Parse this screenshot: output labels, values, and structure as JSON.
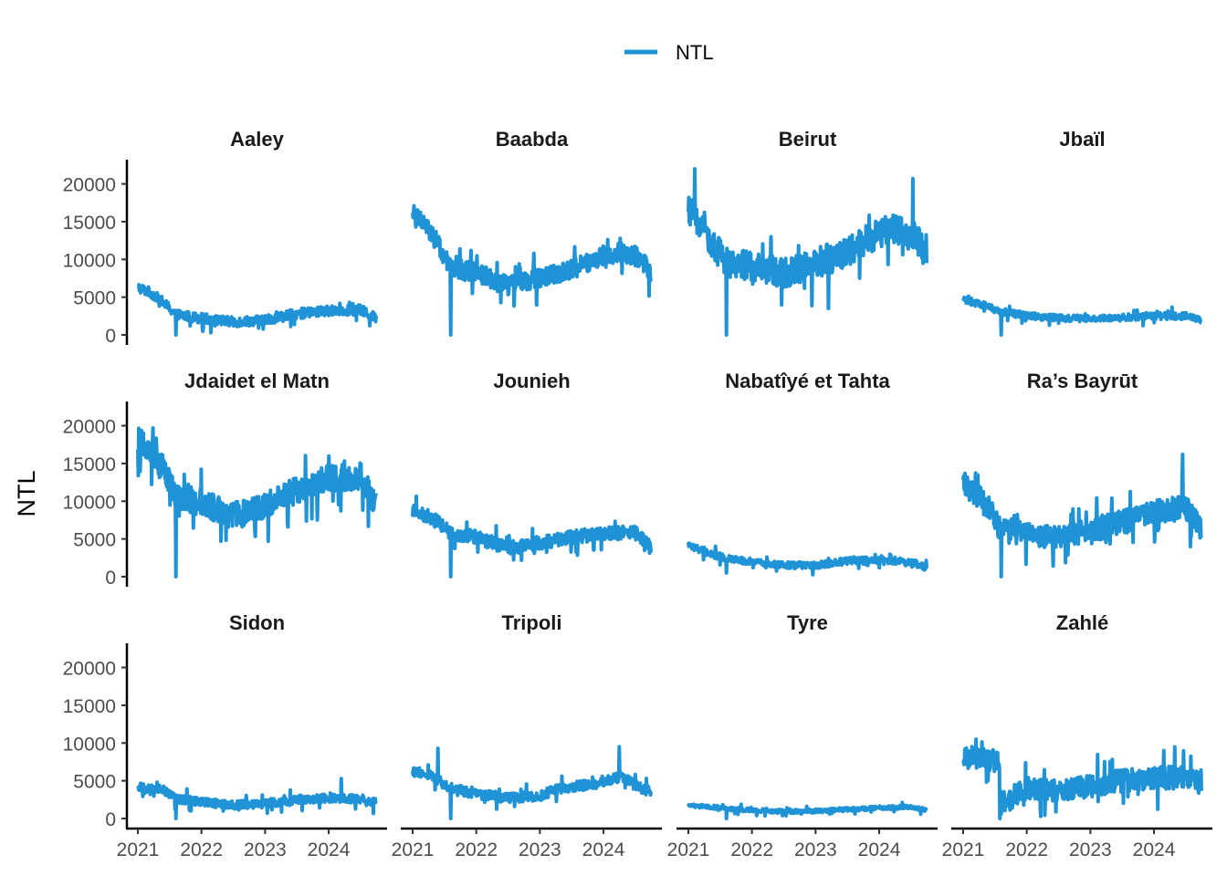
{
  "chart_data": {
    "type": "line",
    "ylabel": "NTL",
    "xlabel": "",
    "legend": {
      "position": "top",
      "entries": [
        {
          "label": "NTL",
          "color": "#1F93D6"
        }
      ]
    },
    "x_ticks": [
      "2021",
      "2022",
      "2023",
      "2024"
    ],
    "y_ticks": [
      "0",
      "5000",
      "10000",
      "15000",
      "20000"
    ],
    "ylim": [
      0,
      22000
    ],
    "xlim": [
      "2021-01-01",
      "2024-09-30"
    ],
    "line_color": "#1F93D6",
    "grid": false,
    "series": [
      {
        "name": "Aaley",
        "trend": [
          [
            2021.0,
            6300
          ],
          [
            2021.2,
            5600
          ],
          [
            2021.4,
            4300
          ],
          [
            2021.6,
            2700
          ],
          [
            2022.0,
            2200
          ],
          [
            2022.5,
            1700
          ],
          [
            2023.0,
            2000
          ],
          [
            2023.5,
            2800
          ],
          [
            2024.0,
            3200
          ],
          [
            2024.5,
            3300
          ],
          [
            2024.75,
            2200
          ]
        ],
        "noise": 650,
        "spikes": [
          [
            2021.6,
            0
          ]
        ]
      },
      {
        "name": "Baabda",
        "trend": [
          [
            2021.0,
            16000
          ],
          [
            2021.2,
            14800
          ],
          [
            2021.4,
            12000
          ],
          [
            2021.6,
            8800
          ],
          [
            2022.0,
            8300
          ],
          [
            2022.5,
            6500
          ],
          [
            2023.0,
            7400
          ],
          [
            2023.5,
            8700
          ],
          [
            2024.0,
            10500
          ],
          [
            2024.3,
            11000
          ],
          [
            2024.6,
            10200
          ],
          [
            2024.75,
            7500
          ]
        ],
        "noise": 1300,
        "spikes": [
          [
            2021.6,
            0
          ]
        ]
      },
      {
        "name": "Beirut",
        "trend": [
          [
            2021.0,
            16500
          ],
          [
            2021.15,
            15000
          ],
          [
            2021.4,
            12000
          ],
          [
            2021.6,
            9500
          ],
          [
            2022.0,
            9200
          ],
          [
            2022.5,
            8200
          ],
          [
            2023.0,
            9500
          ],
          [
            2023.5,
            11000
          ],
          [
            2024.0,
            13500
          ],
          [
            2024.3,
            14000
          ],
          [
            2024.6,
            12800
          ],
          [
            2024.75,
            9500
          ]
        ],
        "noise": 2000,
        "spikes": [
          [
            2021.6,
            0
          ],
          [
            2021.1,
            22000
          ],
          [
            2024.53,
            20700
          ],
          [
            2023.2,
            3500
          ]
        ]
      },
      {
        "name": "Jbaïl",
        "trend": [
          [
            2021.0,
            4700
          ],
          [
            2021.3,
            4000
          ],
          [
            2021.6,
            3000
          ],
          [
            2022.0,
            2600
          ],
          [
            2022.5,
            2200
          ],
          [
            2023.0,
            2200
          ],
          [
            2023.5,
            2300
          ],
          [
            2024.0,
            2500
          ],
          [
            2024.5,
            2500
          ],
          [
            2024.75,
            1900
          ]
        ],
        "noise": 450,
        "spikes": [
          [
            2021.6,
            0
          ]
        ]
      },
      {
        "name": "Jdaidet el Matn",
        "trend": [
          [
            2021.0,
            18000
          ],
          [
            2021.2,
            17000
          ],
          [
            2021.4,
            14000
          ],
          [
            2021.6,
            10500
          ],
          [
            2022.0,
            9800
          ],
          [
            2022.5,
            8000
          ],
          [
            2023.0,
            9500
          ],
          [
            2023.5,
            11500
          ],
          [
            2024.0,
            13000
          ],
          [
            2024.5,
            13300
          ],
          [
            2024.75,
            9500
          ]
        ],
        "noise": 1800,
        "spikes": [
          [
            2021.6,
            0
          ]
        ]
      },
      {
        "name": "Jounieh",
        "trend": [
          [
            2021.0,
            8800
          ],
          [
            2021.3,
            7800
          ],
          [
            2021.6,
            5800
          ],
          [
            2022.0,
            5200
          ],
          [
            2022.5,
            3800
          ],
          [
            2023.0,
            4500
          ],
          [
            2023.5,
            5200
          ],
          [
            2024.0,
            5800
          ],
          [
            2024.5,
            5800
          ],
          [
            2024.75,
            3800
          ]
        ],
        "noise": 900,
        "spikes": [
          [
            2021.6,
            0
          ]
        ]
      },
      {
        "name": "Nabatîyé et Tahta",
        "trend": [
          [
            2021.0,
            4200
          ],
          [
            2021.3,
            3200
          ],
          [
            2021.6,
            2400
          ],
          [
            2022.0,
            2000
          ],
          [
            2022.5,
            1500
          ],
          [
            2023.0,
            1500
          ],
          [
            2023.5,
            2100
          ],
          [
            2024.0,
            2200
          ],
          [
            2024.5,
            2000
          ],
          [
            2024.75,
            1200
          ]
        ],
        "noise": 450,
        "spikes": [
          [
            2021.6,
            500
          ]
        ]
      },
      {
        "name": "Ra’s Bayrūt",
        "trend": [
          [
            2021.0,
            12000
          ],
          [
            2021.2,
            11000
          ],
          [
            2021.4,
            9000
          ],
          [
            2021.6,
            6200
          ],
          [
            2022.0,
            5800
          ],
          [
            2022.5,
            5000
          ],
          [
            2023.0,
            6200
          ],
          [
            2023.5,
            7200
          ],
          [
            2024.0,
            8500
          ],
          [
            2024.5,
            9200
          ],
          [
            2024.75,
            6200
          ]
        ],
        "noise": 1600,
        "spikes": [
          [
            2021.6,
            0
          ],
          [
            2024.45,
            16200
          ]
        ]
      },
      {
        "name": "Sidon",
        "trend": [
          [
            2021.0,
            4200
          ],
          [
            2021.4,
            3800
          ],
          [
            2021.6,
            2600
          ],
          [
            2022.0,
            2200
          ],
          [
            2022.5,
            1800
          ],
          [
            2023.0,
            2000
          ],
          [
            2023.5,
            2500
          ],
          [
            2024.0,
            2700
          ],
          [
            2024.5,
            2600
          ],
          [
            2024.75,
            2100
          ]
        ],
        "noise": 550,
        "spikes": [
          [
            2021.6,
            0
          ],
          [
            2024.2,
            5300
          ]
        ]
      },
      {
        "name": "Tripoli",
        "trend": [
          [
            2021.0,
            6300
          ],
          [
            2021.3,
            5600
          ],
          [
            2021.6,
            4000
          ],
          [
            2022.0,
            3300
          ],
          [
            2022.5,
            2700
          ],
          [
            2023.0,
            3000
          ],
          [
            2023.3,
            4000
          ],
          [
            2023.7,
            4400
          ],
          [
            2024.0,
            4800
          ],
          [
            2024.3,
            5600
          ],
          [
            2024.5,
            4300
          ],
          [
            2024.75,
            3500
          ]
        ],
        "noise": 650,
        "spikes": [
          [
            2021.6,
            0
          ],
          [
            2024.25,
            9500
          ],
          [
            2021.4,
            9300
          ]
        ]
      },
      {
        "name": "Tyre",
        "trend": [
          [
            2021.0,
            1700
          ],
          [
            2021.4,
            1500
          ],
          [
            2021.6,
            1300
          ],
          [
            2022.0,
            1100
          ],
          [
            2022.5,
            900
          ],
          [
            2023.0,
            1000
          ],
          [
            2023.5,
            1200
          ],
          [
            2024.0,
            1400
          ],
          [
            2024.5,
            1500
          ],
          [
            2024.75,
            1100
          ]
        ],
        "noise": 250,
        "spikes": [
          [
            2021.6,
            0
          ]
        ]
      },
      {
        "name": "Zahlé",
        "trend": [
          [
            2021.0,
            8200
          ],
          [
            2021.3,
            8000
          ],
          [
            2021.55,
            7400
          ],
          [
            2021.62,
            2000
          ],
          [
            2022.0,
            4000
          ],
          [
            2022.5,
            3800
          ],
          [
            2023.0,
            4200
          ],
          [
            2023.3,
            4800
          ],
          [
            2024.0,
            5400
          ],
          [
            2024.5,
            5400
          ],
          [
            2024.75,
            4500
          ]
        ],
        "noise": 1500,
        "spikes": [
          [
            2021.58,
            0
          ],
          [
            2021.2,
            10500
          ]
        ]
      }
    ]
  }
}
